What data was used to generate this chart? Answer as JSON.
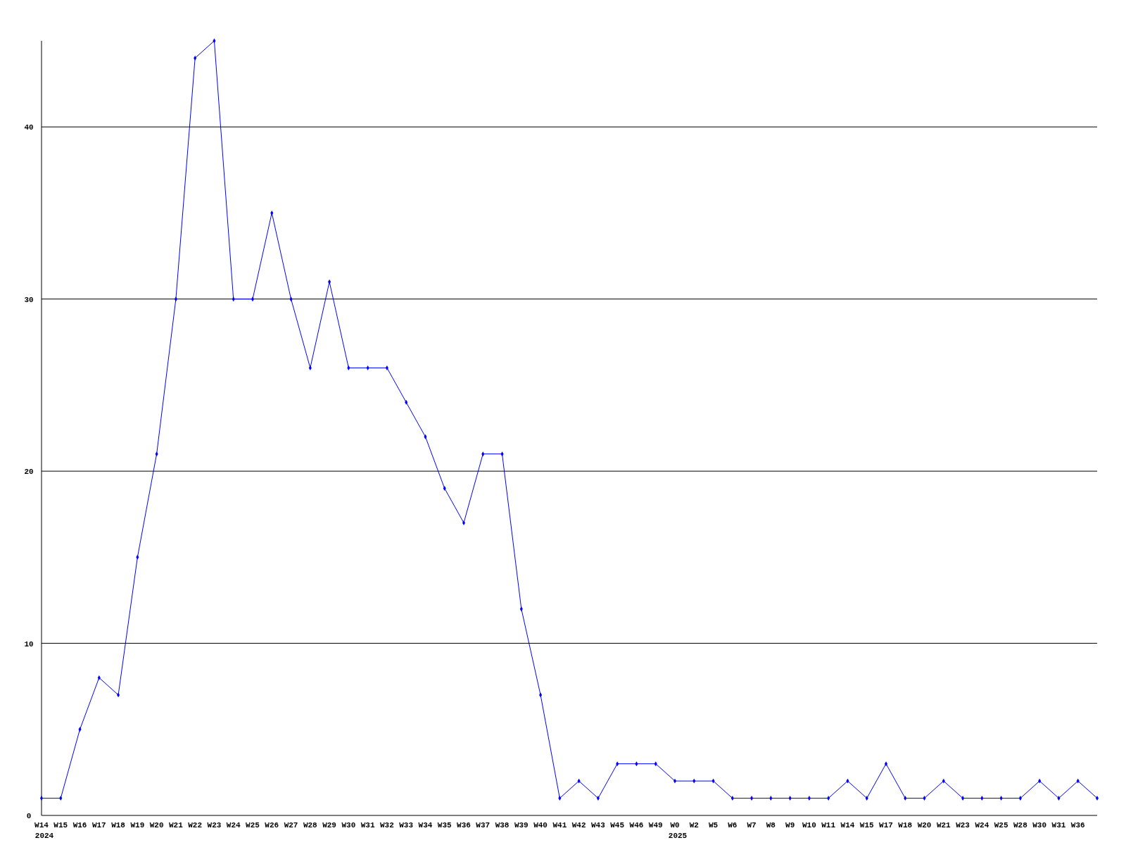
{
  "chart_data": {
    "type": "line",
    "categories": [
      "W14\n2024",
      "W15",
      "W16",
      "W17",
      "W18",
      "W19",
      "W20",
      "W21",
      "W22",
      "W23",
      "W24",
      "W25",
      "W26",
      "W27",
      "W28",
      "W29",
      "W30",
      "W31",
      "W32",
      "W33",
      "W34",
      "W35",
      "W36",
      "W37",
      "W38",
      "W39",
      "W40",
      "W41",
      "W42",
      "W43",
      "W45",
      "W46",
      "W49",
      "W0\n2025",
      "W2",
      "W5",
      "W6",
      "W7",
      "W8",
      "W9",
      "W10",
      "W11",
      "W14",
      "W15",
      "W17",
      "W18",
      "W20",
      "W21",
      "W23",
      "W24",
      "W25",
      "W28",
      "W30",
      "W31",
      "W36",
      null
    ],
    "series": [
      {
        "color": "#0000ff",
        "values": [
          1,
          1,
          5,
          8,
          7,
          15,
          21,
          30,
          44,
          45,
          30,
          30,
          35,
          30,
          26,
          31,
          26,
          26,
          26,
          24,
          22,
          19,
          17,
          21,
          21,
          12,
          7,
          1,
          2,
          1,
          3,
          3,
          3,
          2,
          2,
          2,
          1,
          1,
          1,
          1,
          1,
          1,
          2,
          1,
          3,
          1,
          1,
          2,
          1,
          1,
          1,
          1,
          2,
          1,
          2,
          1
        ]
      }
    ],
    "ylim": [
      0,
      45
    ],
    "yticks": [
      0,
      10,
      20,
      30,
      40
    ],
    "grid": "y",
    "marker": "diamond",
    "line_style": "solid"
  }
}
